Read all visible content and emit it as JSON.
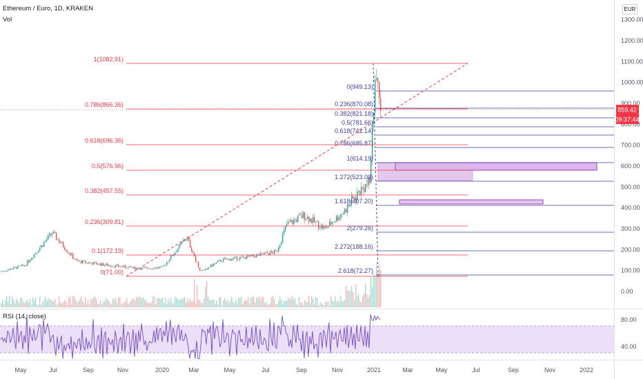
{
  "header": {
    "title": "Ethereum / Euro, 1D, KRAKEN",
    "volume_label": "Vol",
    "currency": "EUR"
  },
  "price_axis": {
    "ticks": [
      "1300.00",
      "1200.00",
      "1100.00",
      "1000.00",
      "900.00",
      "800.00",
      "700.00",
      "600.00",
      "500.00",
      "400.00",
      "300.00",
      "200.00",
      "100.00",
      "0.00"
    ]
  },
  "current_price": {
    "price": "859.42",
    "countdown": "09:37:44",
    "color": "#f23645"
  },
  "rsi": {
    "title": "RSI (14, close)",
    "ticks": [
      "80.00",
      "40.00"
    ],
    "upper": 70,
    "lower": 30
  },
  "time_axis": {
    "labels": [
      "May",
      "Jul",
      "Sep",
      "Nov",
      "2020",
      "Mar",
      "May",
      "Jul",
      "Sep",
      "Nov",
      "2021",
      "Mar",
      "May",
      "Jul",
      "Sep",
      "Nov",
      "2022"
    ]
  },
  "fib_retracement": {
    "color": "#f23645",
    "levels": [
      "1(1082.91)",
      "0.786(866.36)",
      "0.618(696.36)",
      "0.5(576.96)",
      "0.382(457.55)",
      "0.236(309.81)",
      "0.1(172.19)",
      "0(71.00)"
    ]
  },
  "fib_extension": {
    "color": "#3d3d9e",
    "levels": [
      "0(949.13)",
      "0.236(870.08)",
      "0.382(821.18)",
      "0.5(781.66)",
      "0.618(742.14)",
      "0.786(685.87)",
      "1(614.19)",
      "1.272(523.09)",
      "1.618(407.20)",
      "2(279.26)",
      "2.272(188.16)",
      "2.618(72.27)"
    ]
  },
  "colors": {
    "up": "#26a69a",
    "down": "#ef5350",
    "rsi_line": "#7e57c2",
    "rsi_band": "#e9dcf7",
    "zone_fill": "#c77fd6"
  }
}
